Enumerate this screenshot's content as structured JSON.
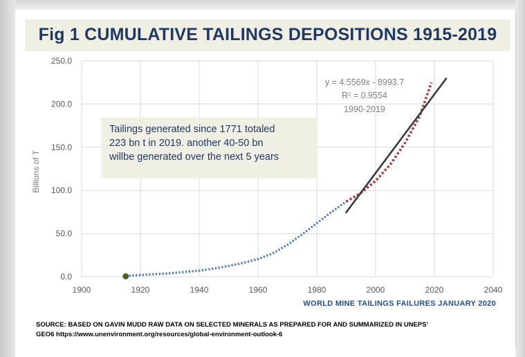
{
  "title": "Fig 1 CUMULATIVE TAILINGS DEPOSITIONS 1915-2019",
  "callout": {
    "line1": "Tailings generated since 1771 totaled",
    "line2": "223 bn t in 2019. another 40-50 bn",
    "line3": "willbe generated over  the next 5 years"
  },
  "source": {
    "line1": "SOURCE: BASED ON GAVIN MUDD  RAW DATA ON SELECTED MINERALS AS PREPARED FOR AND SUMMARIZED IN UNEPS'",
    "line2": "GEO6 https://www.unenvironment.org/resources/global-environment-outlook-6"
  },
  "colors": {
    "title": "#1f3864",
    "series_main": "#4472c4",
    "series_recent": "#a93a3a",
    "trendline": "#3a3a3a",
    "start_marker": "#4f6228",
    "axis_title_x": "#1f4e8c"
  },
  "chart_data": {
    "type": "scatter",
    "title": "Fig 1 CUMULATIVE TAILINGS DEPOSITIONS 1915-2019",
    "xlabel": "WORLD MINE TAILINGS FAILURES JANUARY 2020",
    "ylabel": "Billions of T",
    "xlim": [
      1900,
      2040
    ],
    "ylim": [
      0,
      250
    ],
    "xticks": [
      "1900",
      "1920",
      "1940",
      "1960",
      "1980",
      "2000",
      "2020",
      "2040"
    ],
    "yticks": [
      "0.0",
      "50.0",
      "100.0",
      "150.0",
      "200.0",
      "250.0"
    ],
    "grid": true,
    "legend": "none",
    "series": [
      {
        "style": "dotted",
        "x": [
          1915,
          1920,
          1925,
          1930,
          1935,
          1940,
          1945,
          1950,
          1955,
          1960,
          1965,
          1970,
          1975,
          1980,
          1985,
          1990
        ],
        "y": [
          1.0,
          2.0,
          3.0,
          4.0,
          5.5,
          7.0,
          9.5,
          12.5,
          16.0,
          20.5,
          27.0,
          37.0,
          49.0,
          62.0,
          75.0,
          87.0
        ]
      },
      {
        "style": "dotted",
        "x": [
          1990,
          1995,
          2000,
          2005,
          2010,
          2015,
          2019
        ],
        "y": [
          87.0,
          97.0,
          111.0,
          130.0,
          155.0,
          186.0,
          225.0
        ]
      }
    ],
    "start_marker": {
      "x": 1915,
      "y": 0.5
    },
    "trendline": {
      "equation": "y = 4.5569x - 8993.7",
      "r2": "R² = 0.9554",
      "range_label": "1990-2019",
      "x": [
        1990,
        2024
      ],
      "y": [
        74.5,
        229.5
      ]
    }
  }
}
